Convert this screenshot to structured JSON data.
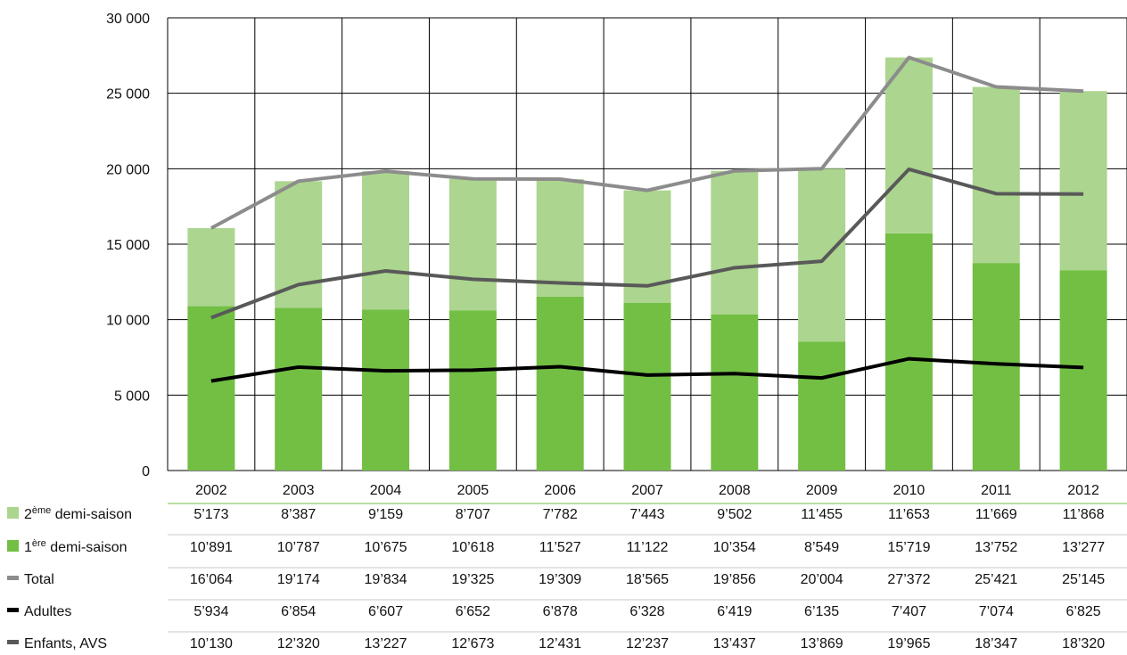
{
  "chart_data": {
    "type": "bar",
    "stacked": true,
    "categories": [
      "2002",
      "2003",
      "2004",
      "2005",
      "2006",
      "2007",
      "2008",
      "2009",
      "2010",
      "2011",
      "2012"
    ],
    "ylim": [
      0,
      30000
    ],
    "yticks": [
      0,
      5000,
      10000,
      15000,
      20000,
      25000,
      30000
    ],
    "ytick_labels": [
      "0",
      "5 000",
      "10 000",
      "15 000",
      "20 000",
      "25 000",
      "30 000"
    ],
    "grid": "vertical category lines and horizontal lines at tick marks",
    "legend": "table-left",
    "bar_series": [
      {
        "name": "1ère demi-saison",
        "label_base": "1",
        "label_sup": "ère",
        "label_rest": " demi-saison",
        "color": "#72bf44",
        "values": [
          10891,
          10787,
          10675,
          10618,
          11527,
          11122,
          10354,
          8549,
          15719,
          13752,
          13277
        ]
      },
      {
        "name": "2ème demi-saison",
        "label_base": "2",
        "label_sup": "ème",
        "label_rest": " demi-saison",
        "color": "#acd58f",
        "values": [
          5173,
          8387,
          9159,
          8707,
          7782,
          7443,
          9502,
          11455,
          11653,
          11669,
          11868
        ]
      }
    ],
    "line_series": [
      {
        "name": "Total",
        "color": "#8c8c8c",
        "values": [
          16064,
          19174,
          19834,
          19325,
          19309,
          18565,
          19856,
          20004,
          27372,
          25421,
          25145
        ]
      },
      {
        "name": "Adultes",
        "color": "#000000",
        "values": [
          5934,
          6854,
          6607,
          6652,
          6878,
          6328,
          6419,
          6135,
          7407,
          7074,
          6825
        ]
      },
      {
        "name": "Enfants, AVS",
        "color": "#595959",
        "values": [
          10130,
          12320,
          13227,
          12673,
          12431,
          12237,
          13437,
          13869,
          19965,
          18347,
          18320
        ]
      }
    ],
    "table_rows": [
      {
        "label": "2ème demi-saison",
        "label_base": "2",
        "label_sup": "ème",
        "label_rest": " demi-saison",
        "marker": "square",
        "color": "#acd58f",
        "cells": [
          "5’173",
          "8’387",
          "9’159",
          "8’707",
          "7’782",
          "7’443",
          "9’502",
          "11’455",
          "11’653",
          "11’669",
          "11’868"
        ]
      },
      {
        "label": "1ère demi-saison",
        "label_base": "1",
        "label_sup": "ère",
        "label_rest": " demi-saison",
        "marker": "square",
        "color": "#72bf44",
        "cells": [
          "10’891",
          "10’787",
          "10’675",
          "10’618",
          "11’527",
          "11’122",
          "10’354",
          "8’549",
          "15’719",
          "13’752",
          "13’277"
        ]
      },
      {
        "label": "Total",
        "label_base": "Total",
        "label_sup": "",
        "label_rest": "",
        "marker": "line",
        "color": "#8c8c8c",
        "cells": [
          "16’064",
          "19’174",
          "19’834",
          "19’325",
          "19’309",
          "18’565",
          "19’856",
          "20’004",
          "27’372",
          "25’421",
          "25’145"
        ]
      },
      {
        "label": "Adultes",
        "label_base": "Adultes",
        "label_sup": "",
        "label_rest": "",
        "marker": "line",
        "color": "#000000",
        "cells": [
          "5’934",
          "6’854",
          "6’607",
          "6’652",
          "6’878",
          "6’328",
          "6’419",
          "6’135",
          "7’407",
          "7’074",
          "6’825"
        ]
      },
      {
        "label": "Enfants, AVS",
        "label_base": "Enfants, AVS",
        "label_sup": "",
        "label_rest": "",
        "marker": "line",
        "color": "#595959",
        "cells": [
          "10’130",
          "12’320",
          "13’227",
          "12’673",
          "12’431",
          "12’237",
          "13’437",
          "13’869",
          "19’965",
          "18’347",
          "18’320"
        ]
      }
    ]
  }
}
